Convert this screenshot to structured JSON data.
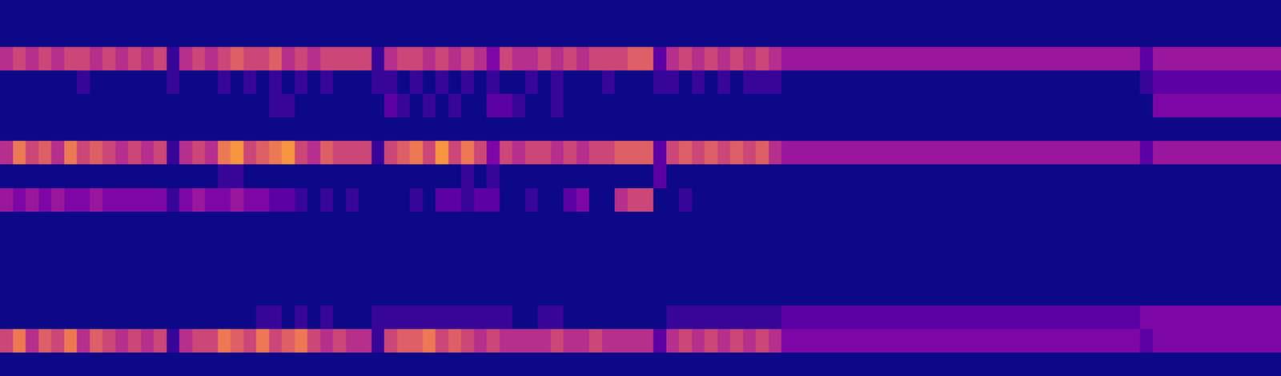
{
  "chart_data": {
    "type": "heatmap",
    "tick_labels": false,
    "zlim": [
      0,
      12
    ],
    "cells": [
      [
        0,
        0,
        0,
        0,
        0,
        0,
        0,
        0,
        0,
        0,
        0,
        0,
        0,
        0,
        0,
        0,
        0,
        0,
        0,
        0,
        0,
        0,
        0,
        0,
        0,
        0,
        0,
        0,
        0,
        0,
        0,
        0,
        0,
        0,
        0,
        0,
        0,
        0,
        0,
        0,
        0,
        0,
        0,
        0,
        0,
        0,
        0,
        0,
        0,
        0,
        0,
        0,
        0,
        0,
        0,
        0,
        0,
        0,
        0,
        0,
        0,
        0,
        0,
        0,
        0,
        0,
        0,
        0,
        0,
        0,
        0,
        0,
        0,
        0,
        0,
        0,
        0,
        0,
        0,
        0,
        0,
        0,
        0,
        0,
        0,
        0,
        0,
        0,
        0,
        0,
        0,
        0,
        0,
        0,
        0,
        0,
        0,
        0,
        0,
        0
      ],
      [
        0,
        0,
        0,
        0,
        0,
        0,
        0,
        0,
        0,
        0,
        0,
        0,
        0,
        0,
        0,
        0,
        0,
        0,
        0,
        0,
        0,
        0,
        0,
        0,
        0,
        0,
        0,
        0,
        0,
        0,
        0,
        0,
        0,
        0,
        0,
        0,
        0,
        0,
        0,
        0,
        0,
        0,
        0,
        0,
        0,
        0,
        0,
        0,
        0,
        0,
        0,
        0,
        0,
        0,
        0,
        0,
        0,
        0,
        0,
        0,
        0,
        0,
        0,
        0,
        0,
        0,
        0,
        0,
        0,
        0,
        0,
        0,
        0,
        0,
        0,
        0,
        0,
        0,
        0,
        0,
        0,
        0,
        0,
        0,
        0,
        0,
        0,
        0,
        0,
        0,
        0,
        0,
        0,
        0,
        0,
        0,
        0,
        0,
        0,
        0
      ],
      [
        5,
        6,
        5,
        6,
        5,
        6,
        6,
        5,
        6,
        5,
        6,
        5,
        6,
        1,
        5,
        6,
        5,
        6,
        7,
        6,
        6,
        7,
        5,
        6,
        5,
        6,
        6,
        6,
        6,
        1,
        5,
        6,
        6,
        5,
        6,
        5,
        6,
        5,
        3,
        6,
        5,
        5,
        6,
        5,
        6,
        5,
        6,
        6,
        6,
        7,
        7,
        2,
        5,
        6,
        5,
        6,
        5,
        6,
        5,
        6,
        5,
        4,
        4,
        4,
        4,
        4,
        4,
        4,
        4,
        4,
        4,
        4,
        4,
        4,
        4,
        4,
        4,
        4,
        4,
        4,
        4,
        4,
        4,
        4,
        4,
        4,
        4,
        4,
        4,
        2,
        4,
        4,
        4,
        4,
        4,
        4,
        4,
        4,
        4,
        4
      ],
      [
        0,
        0,
        0,
        0,
        0,
        0,
        1,
        0,
        0,
        0,
        0,
        0,
        0,
        1,
        0,
        0,
        0,
        1,
        0,
        1,
        0,
        1,
        0,
        1,
        0,
        1,
        0,
        0,
        0,
        1,
        1,
        0,
        1,
        0,
        1,
        0,
        1,
        0,
        1,
        0,
        0,
        1,
        0,
        1,
        0,
        0,
        0,
        1,
        0,
        0,
        0,
        1,
        1,
        0,
        1,
        0,
        1,
        0,
        1,
        1,
        1,
        0,
        0,
        0,
        0,
        0,
        0,
        0,
        0,
        0,
        0,
        0,
        0,
        0,
        0,
        0,
        0,
        0,
        0,
        0,
        0,
        0,
        0,
        0,
        0,
        0,
        0,
        0,
        0,
        1,
        2,
        2,
        2,
        2,
        2,
        2,
        2,
        2,
        2,
        2
      ],
      [
        0,
        0,
        0,
        0,
        0,
        0,
        0,
        0,
        0,
        0,
        0,
        0,
        0,
        0,
        0,
        0,
        0,
        0,
        0,
        0,
        0,
        1,
        1,
        0,
        0,
        0,
        0,
        0,
        0,
        0,
        2,
        1,
        0,
        1,
        0,
        1,
        0,
        0,
        2,
        2,
        1,
        0,
        0,
        1,
        0,
        0,
        0,
        0,
        0,
        0,
        0,
        0,
        0,
        0,
        0,
        0,
        0,
        0,
        0,
        0,
        0,
        0,
        0,
        0,
        0,
        0,
        0,
        0,
        0,
        0,
        0,
        0,
        0,
        0,
        0,
        0,
        0,
        0,
        0,
        0,
        0,
        0,
        0,
        0,
        0,
        0,
        0,
        0,
        0,
        0,
        3,
        3,
        3,
        3,
        3,
        3,
        3,
        3,
        3,
        3
      ],
      [
        0,
        0,
        0,
        0,
        0,
        0,
        0,
        0,
        0,
        0,
        0,
        0,
        0,
        0,
        0,
        0,
        0,
        0,
        0,
        0,
        0,
        0,
        0,
        0,
        0,
        0,
        0,
        0,
        0,
        0,
        0,
        0,
        0,
        0,
        0,
        0,
        0,
        0,
        0,
        0,
        0,
        0,
        0,
        0,
        0,
        0,
        0,
        0,
        0,
        0,
        0,
        0,
        0,
        0,
        0,
        0,
        0,
        0,
        0,
        0,
        0,
        0,
        0,
        0,
        0,
        0,
        0,
        0,
        0,
        0,
        0,
        0,
        0,
        0,
        0,
        0,
        0,
        0,
        0,
        0,
        0,
        0,
        0,
        0,
        0,
        0,
        0,
        0,
        0,
        0,
        0,
        0,
        0,
        0,
        0,
        0,
        0,
        0,
        0,
        0
      ],
      [
        5,
        8,
        6,
        7,
        5,
        8,
        6,
        7,
        6,
        5,
        6,
        5,
        6,
        1,
        5,
        6,
        5,
        8,
        9,
        6,
        7,
        8,
        9,
        6,
        5,
        7,
        6,
        6,
        6,
        1,
        6,
        7,
        8,
        6,
        9,
        6,
        8,
        6,
        3,
        6,
        5,
        6,
        6,
        5,
        6,
        5,
        6,
        6,
        7,
        7,
        7,
        2,
        6,
        7,
        6,
        7,
        6,
        7,
        6,
        7,
        5,
        4,
        4,
        4,
        4,
        4,
        4,
        4,
        4,
        4,
        4,
        4,
        4,
        4,
        4,
        4,
        4,
        4,
        4,
        4,
        4,
        4,
        4,
        4,
        4,
        4,
        4,
        4,
        4,
        2,
        4,
        4,
        4,
        4,
        4,
        4,
        4,
        4,
        4,
        4
      ],
      [
        0,
        0,
        0,
        0,
        0,
        0,
        0,
        0,
        0,
        0,
        0,
        0,
        0,
        0,
        0,
        0,
        0,
        1,
        1,
        0,
        0,
        0,
        0,
        0,
        0,
        0,
        0,
        0,
        0,
        0,
        0,
        0,
        0,
        0,
        0,
        0,
        1,
        0,
        1,
        0,
        0,
        0,
        0,
        0,
        0,
        0,
        0,
        0,
        0,
        0,
        0,
        2,
        0,
        0,
        0,
        0,
        0,
        0,
        0,
        0,
        0,
        0,
        0,
        0,
        0,
        0,
        0,
        0,
        0,
        0,
        0,
        0,
        0,
        0,
        0,
        0,
        0,
        0,
        0,
        0,
        0,
        0,
        0,
        0,
        0,
        0,
        0,
        0,
        0,
        0,
        0,
        0,
        0,
        0,
        0,
        0,
        0,
        0,
        0,
        0
      ],
      [
        4,
        3,
        4,
        3,
        4,
        3,
        3,
        4,
        3,
        3,
        3,
        3,
        3,
        1,
        3,
        4,
        3,
        3,
        4,
        3,
        3,
        2,
        2,
        1,
        0,
        1,
        0,
        1,
        0,
        0,
        0,
        0,
        1,
        0,
        2,
        2,
        1,
        2,
        2,
        0,
        0,
        1,
        0,
        0,
        2,
        3,
        0,
        0,
        5,
        6,
        6,
        0,
        0,
        1,
        0,
        0,
        0,
        0,
        0,
        0,
        0,
        0,
        0,
        0,
        0,
        0,
        0,
        0,
        0,
        0,
        0,
        0,
        0,
        0,
        0,
        0,
        0,
        0,
        0,
        0,
        0,
        0,
        0,
        0,
        0,
        0,
        0,
        0,
        0,
        0,
        0,
        0,
        0,
        0,
        0,
        0,
        0,
        0,
        0,
        0
      ],
      [
        0,
        0,
        0,
        0,
        0,
        0,
        0,
        0,
        0,
        0,
        0,
        0,
        0,
        0,
        0,
        0,
        0,
        0,
        0,
        0,
        0,
        0,
        0,
        0,
        0,
        0,
        0,
        0,
        0,
        0,
        0,
        0,
        0,
        0,
        0,
        0,
        0,
        0,
        0,
        0,
        0,
        0,
        0,
        0,
        0,
        0,
        0,
        0,
        0,
        0,
        0,
        0,
        0,
        0,
        0,
        0,
        0,
        0,
        0,
        0,
        0,
        0,
        0,
        0,
        0,
        0,
        0,
        0,
        0,
        0,
        0,
        0,
        0,
        0,
        0,
        0,
        0,
        0,
        0,
        0,
        0,
        0,
        0,
        0,
        0,
        0,
        0,
        0,
        0,
        0,
        0,
        0,
        0,
        0,
        0,
        0,
        0,
        0,
        0,
        0
      ],
      [
        0,
        0,
        0,
        0,
        0,
        0,
        0,
        0,
        0,
        0,
        0,
        0,
        0,
        0,
        0,
        0,
        0,
        0,
        0,
        0,
        0,
        0,
        0,
        0,
        0,
        0,
        0,
        0,
        0,
        0,
        0,
        0,
        0,
        0,
        0,
        0,
        0,
        0,
        0,
        0,
        0,
        0,
        0,
        0,
        0,
        0,
        0,
        0,
        0,
        0,
        0,
        0,
        0,
        0,
        0,
        0,
        0,
        0,
        0,
        0,
        0,
        0,
        0,
        0,
        0,
        0,
        0,
        0,
        0,
        0,
        0,
        0,
        0,
        0,
        0,
        0,
        0,
        0,
        0,
        0,
        0,
        0,
        0,
        0,
        0,
        0,
        0,
        0,
        0,
        0,
        0,
        0,
        0,
        0,
        0,
        0,
        0,
        0,
        0,
        0
      ],
      [
        0,
        0,
        0,
        0,
        0,
        0,
        0,
        0,
        0,
        0,
        0,
        0,
        0,
        0,
        0,
        0,
        0,
        0,
        0,
        0,
        0,
        0,
        0,
        0,
        0,
        0,
        0,
        0,
        0,
        0,
        0,
        0,
        0,
        0,
        0,
        0,
        0,
        0,
        0,
        0,
        0,
        0,
        0,
        0,
        0,
        0,
        0,
        0,
        0,
        0,
        0,
        0,
        0,
        0,
        0,
        0,
        0,
        0,
        0,
        0,
        0,
        0,
        0,
        0,
        0,
        0,
        0,
        0,
        0,
        0,
        0,
        0,
        0,
        0,
        0,
        0,
        0,
        0,
        0,
        0,
        0,
        0,
        0,
        0,
        0,
        0,
        0,
        0,
        0,
        0,
        0,
        0,
        0,
        0,
        0,
        0,
        0,
        0,
        0,
        0
      ],
      [
        0,
        0,
        0,
        0,
        0,
        0,
        0,
        0,
        0,
        0,
        0,
        0,
        0,
        0,
        0,
        0,
        0,
        0,
        0,
        0,
        0,
        0,
        0,
        0,
        0,
        0,
        0,
        0,
        0,
        0,
        0,
        0,
        0,
        0,
        0,
        0,
        0,
        0,
        0,
        0,
        0,
        0,
        0,
        0,
        0,
        0,
        0,
        0,
        0,
        0,
        0,
        0,
        0,
        0,
        0,
        0,
        0,
        0,
        0,
        0,
        0,
        0,
        0,
        0,
        0,
        0,
        0,
        0,
        0,
        0,
        0,
        0,
        0,
        0,
        0,
        0,
        0,
        0,
        0,
        0,
        0,
        0,
        0,
        0,
        0,
        0,
        0,
        0,
        0,
        0,
        0,
        0,
        0,
        0,
        0,
        0,
        0,
        0,
        0,
        0
      ],
      [
        0,
        0,
        0,
        0,
        0,
        0,
        0,
        0,
        0,
        0,
        0,
        0,
        0,
        0,
        0,
        0,
        0,
        0,
        0,
        0,
        1,
        1,
        0,
        1,
        0,
        1,
        0,
        0,
        0,
        1,
        1,
        1,
        1,
        1,
        1,
        1,
        1,
        1,
        1,
        1,
        0,
        0,
        1,
        1,
        0,
        0,
        0,
        0,
        0,
        0,
        0,
        0,
        1,
        1,
        1,
        1,
        1,
        1,
        1,
        1,
        1,
        2,
        2,
        2,
        2,
        2,
        2,
        2,
        2,
        2,
        2,
        2,
        2,
        2,
        2,
        2,
        2,
        2,
        2,
        2,
        2,
        2,
        2,
        2,
        2,
        2,
        2,
        2,
        2,
        3,
        3,
        3,
        3,
        3,
        3,
        3,
        3,
        3,
        3,
        3
      ],
      [
        6,
        8,
        5,
        7,
        6,
        8,
        5,
        7,
        6,
        5,
        6,
        5,
        6,
        1,
        5,
        6,
        6,
        8,
        7,
        6,
        8,
        6,
        7,
        8,
        6,
        5,
        6,
        5,
        5,
        1,
        6,
        7,
        7,
        8,
        6,
        7,
        6,
        5,
        6,
        5,
        5,
        5,
        5,
        6,
        5,
        5,
        6,
        5,
        5,
        5,
        5,
        2,
        5,
        6,
        5,
        6,
        5,
        6,
        5,
        6,
        5,
        3,
        3,
        3,
        3,
        3,
        3,
        3,
        3,
        3,
        3,
        3,
        3,
        3,
        3,
        3,
        3,
        3,
        3,
        3,
        3,
        3,
        3,
        3,
        3,
        3,
        3,
        3,
        3,
        2,
        3,
        3,
        3,
        3,
        3,
        3,
        3,
        3,
        3,
        3
      ],
      [
        0,
        0,
        0,
        0,
        0,
        0,
        0,
        0,
        0,
        0,
        0,
        0,
        0,
        0,
        0,
        0,
        0,
        0,
        0,
        0,
        0,
        0,
        0,
        0,
        0,
        0,
        0,
        0,
        0,
        0,
        0,
        0,
        0,
        0,
        0,
        0,
        0,
        0,
        0,
        0,
        0,
        0,
        0,
        0,
        0,
        0,
        0,
        0,
        0,
        0,
        0,
        0,
        0,
        0,
        0,
        0,
        0,
        0,
        0,
        0,
        0,
        0,
        0,
        0,
        0,
        0,
        0,
        0,
        0,
        0,
        0,
        0,
        0,
        0,
        0,
        0,
        0,
        0,
        0,
        0,
        0,
        0,
        0,
        0,
        0,
        0,
        0,
        0,
        0,
        0,
        0,
        0,
        0,
        0,
        0,
        0,
        0,
        0,
        0,
        0
      ]
    ]
  }
}
